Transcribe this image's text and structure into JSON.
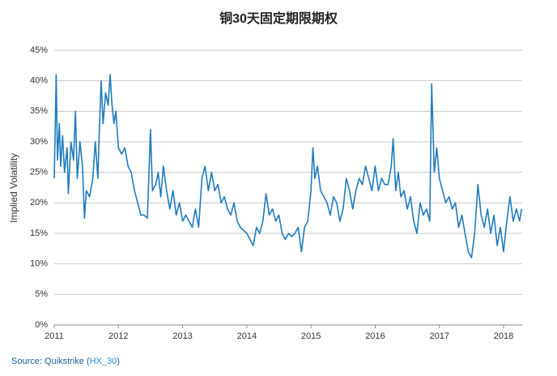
{
  "chart_data": {
    "type": "line",
    "title": "铜30天固定期限期权",
    "ylabel": "Implied Volatility",
    "source": {
      "prefix": "Source: Quikstrike (",
      "link": "HX_30",
      "suffix": ")"
    },
    "xlim": [
      2011,
      2018.29
    ],
    "xticks": [
      2011,
      2012,
      2013,
      2014,
      2015,
      2016,
      2017,
      2018
    ],
    "ylim": [
      0,
      45
    ],
    "yticks": [
      {
        "value": 0,
        "label": "0%"
      },
      {
        "value": 5,
        "label": "5%"
      },
      {
        "value": 10,
        "label": "10%"
      },
      {
        "value": 15,
        "label": "15%"
      },
      {
        "value": 20,
        "label": "20%"
      },
      {
        "value": 25,
        "label": "25%"
      },
      {
        "value": 30,
        "label": "30%"
      },
      {
        "value": 35,
        "label": "35%"
      },
      {
        "value": 40,
        "label": "40%"
      },
      {
        "value": 45,
        "label": "45%"
      }
    ],
    "grid": true,
    "series": [
      {
        "color": "#1f7bbf",
        "x": [
          2011.0,
          2011.02,
          2011.03,
          2011.05,
          2011.08,
          2011.1,
          2011.13,
          2011.16,
          2011.2,
          2011.22,
          2011.26,
          2011.3,
          2011.33,
          2011.36,
          2011.4,
          2011.44,
          2011.47,
          2011.5,
          2011.55,
          2011.6,
          2011.64,
          2011.68,
          2011.7,
          2011.73,
          2011.76,
          2011.8,
          2011.84,
          2011.87,
          2011.9,
          2011.93,
          2011.96,
          2012.0,
          2012.05,
          2012.1,
          2012.15,
          2012.2,
          2012.25,
          2012.3,
          2012.35,
          2012.4,
          2012.45,
          2012.5,
          2012.53,
          2012.58,
          2012.62,
          2012.66,
          2012.7,
          2012.75,
          2012.8,
          2012.85,
          2012.9,
          2012.95,
          2013.0,
          2013.05,
          2013.1,
          2013.15,
          2013.2,
          2013.25,
          2013.3,
          2013.35,
          2013.4,
          2013.45,
          2013.5,
          2013.55,
          2013.6,
          2013.65,
          2013.7,
          2013.75,
          2013.8,
          2013.85,
          2013.9,
          2014.0,
          2014.05,
          2014.1,
          2014.15,
          2014.2,
          2014.25,
          2014.3,
          2014.35,
          2014.4,
          2014.45,
          2014.5,
          2014.55,
          2014.6,
          2014.65,
          2014.7,
          2014.75,
          2014.8,
          2014.85,
          2014.9,
          2014.95,
          2015.0,
          2015.03,
          2015.06,
          2015.1,
          2015.15,
          2015.2,
          2015.25,
          2015.3,
          2015.35,
          2015.4,
          2015.45,
          2015.5,
          2015.55,
          2015.6,
          2015.65,
          2015.7,
          2015.75,
          2015.8,
          2015.85,
          2015.9,
          2015.95,
          2016.0,
          2016.05,
          2016.1,
          2016.15,
          2016.2,
          2016.25,
          2016.28,
          2016.32,
          2016.36,
          2016.4,
          2016.45,
          2016.5,
          2016.55,
          2016.6,
          2016.65,
          2016.7,
          2016.75,
          2016.8,
          2016.85,
          2016.88,
          2016.92,
          2016.96,
          2017.0,
          2017.05,
          2017.1,
          2017.15,
          2017.2,
          2017.25,
          2017.3,
          2017.35,
          2017.4,
          2017.45,
          2017.5,
          2017.55,
          2017.6,
          2017.65,
          2017.7,
          2017.75,
          2017.8,
          2017.85,
          2017.9,
          2017.95,
          2018.0,
          2018.05,
          2018.1,
          2018.15,
          2018.2,
          2018.25,
          2018.28
        ],
        "values": [
          24,
          35,
          41,
          27,
          33,
          26,
          31,
          25,
          29,
          21.5,
          30,
          27,
          35,
          24,
          30,
          26,
          17.5,
          22,
          21,
          24,
          30,
          24,
          31,
          40,
          33,
          38,
          36,
          41,
          36,
          33,
          35,
          29,
          28,
          29,
          26,
          25,
          22,
          20,
          18,
          18,
          17.5,
          32,
          22,
          23,
          25,
          21,
          26,
          22,
          19,
          22,
          18,
          20,
          17,
          18,
          17,
          16,
          19,
          16,
          24,
          26,
          22,
          25,
          22,
          23,
          20,
          21,
          19,
          18,
          20,
          17,
          16,
          15,
          14,
          13,
          16,
          15,
          17,
          21.5,
          18,
          19,
          17,
          18,
          15,
          14,
          15,
          14.5,
          15,
          16,
          12,
          16,
          17,
          22,
          29,
          24,
          26,
          22,
          21,
          20,
          18,
          21,
          20,
          17,
          19,
          24,
          22,
          19,
          22,
          24,
          23,
          26,
          24,
          22,
          26,
          22,
          24,
          23,
          23,
          26,
          30.5,
          22,
          25,
          21,
          22,
          19,
          21,
          17,
          15,
          20,
          18,
          19,
          17,
          39.5,
          25,
          29,
          24,
          22,
          20,
          21,
          19,
          20,
          16,
          18,
          15,
          12,
          11,
          15,
          23,
          18,
          16,
          19,
          15,
          18,
          13,
          16,
          12,
          17,
          21,
          17,
          19,
          17,
          19
        ]
      }
    ]
  }
}
